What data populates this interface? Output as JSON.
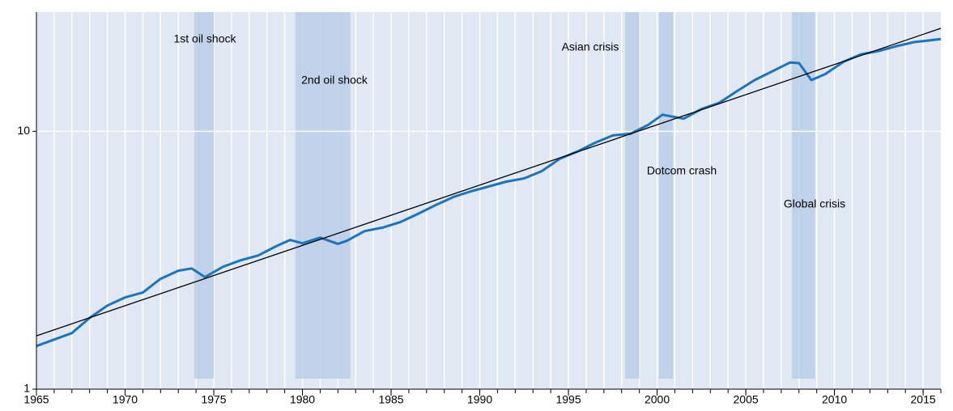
{
  "chart_data": {
    "type": "line",
    "log_y": true,
    "xlim": [
      1965,
      2016
    ],
    "ylim": [
      1,
      29
    ],
    "xticks": [
      1965,
      1970,
      1975,
      1980,
      1985,
      1990,
      1995,
      2000,
      2005,
      2010,
      2015
    ],
    "yticks": [
      1,
      10
    ],
    "grid": true,
    "periods": [
      {
        "label": "1st oil shock",
        "start": 1973.9,
        "end": 1975.0
      },
      {
        "label": "2nd oil shock",
        "start": 1979.6,
        "end": 1982.7
      },
      {
        "label": "Asian crisis",
        "start": 1998.2,
        "end": 1999.0
      },
      {
        "label": "Dotcom crash",
        "start": 2000.1,
        "end": 2000.9
      },
      {
        "label": "Global crisis",
        "start": 2007.6,
        "end": 2008.9
      }
    ],
    "series": [
      {
        "color": "#2173b8",
        "x": [
          1965,
          1967,
          1968,
          1969,
          1970,
          1971,
          1972,
          1973,
          1973.75,
          1974.5,
          1975.5,
          1976.5,
          1977.5,
          1978.5,
          1979.3,
          1980,
          1981,
          1982,
          1982.5,
          1983.5,
          1984.5,
          1985.5,
          1986.5,
          1987.5,
          1988.5,
          1989.5,
          1990.5,
          1991.5,
          1992.5,
          1993.5,
          1994.5,
          1995.5,
          1996.5,
          1997.5,
          1998.5,
          1999.5,
          2000.3,
          2001.5,
          2002.5,
          2003.5,
          2004.5,
          2005.5,
          2006.5,
          2007.5,
          2008,
          2008.7,
          2009.5,
          2010.5,
          2011.5,
          2012.5,
          2013.5,
          2014.5,
          2016
        ],
        "values": [
          1.47,
          1.65,
          1.89,
          2.11,
          2.27,
          2.37,
          2.68,
          2.88,
          2.94,
          2.72,
          2.98,
          3.16,
          3.3,
          3.58,
          3.79,
          3.68,
          3.87,
          3.66,
          3.76,
          4.1,
          4.23,
          4.44,
          4.78,
          5.17,
          5.56,
          5.85,
          6.11,
          6.38,
          6.57,
          7.01,
          7.82,
          8.35,
          9.03,
          9.64,
          9.79,
          10.6,
          11.6,
          11.2,
          12.2,
          12.9,
          14.3,
          15.8,
          17.1,
          18.5,
          18.4,
          15.8,
          16.7,
          18.6,
          19.9,
          20.5,
          21.4,
          22.2,
          22.8
        ]
      },
      {
        "color": "#000000",
        "x": [
          1965,
          2016
        ],
        "values": [
          1.61,
          25.1
        ]
      }
    ]
  }
}
